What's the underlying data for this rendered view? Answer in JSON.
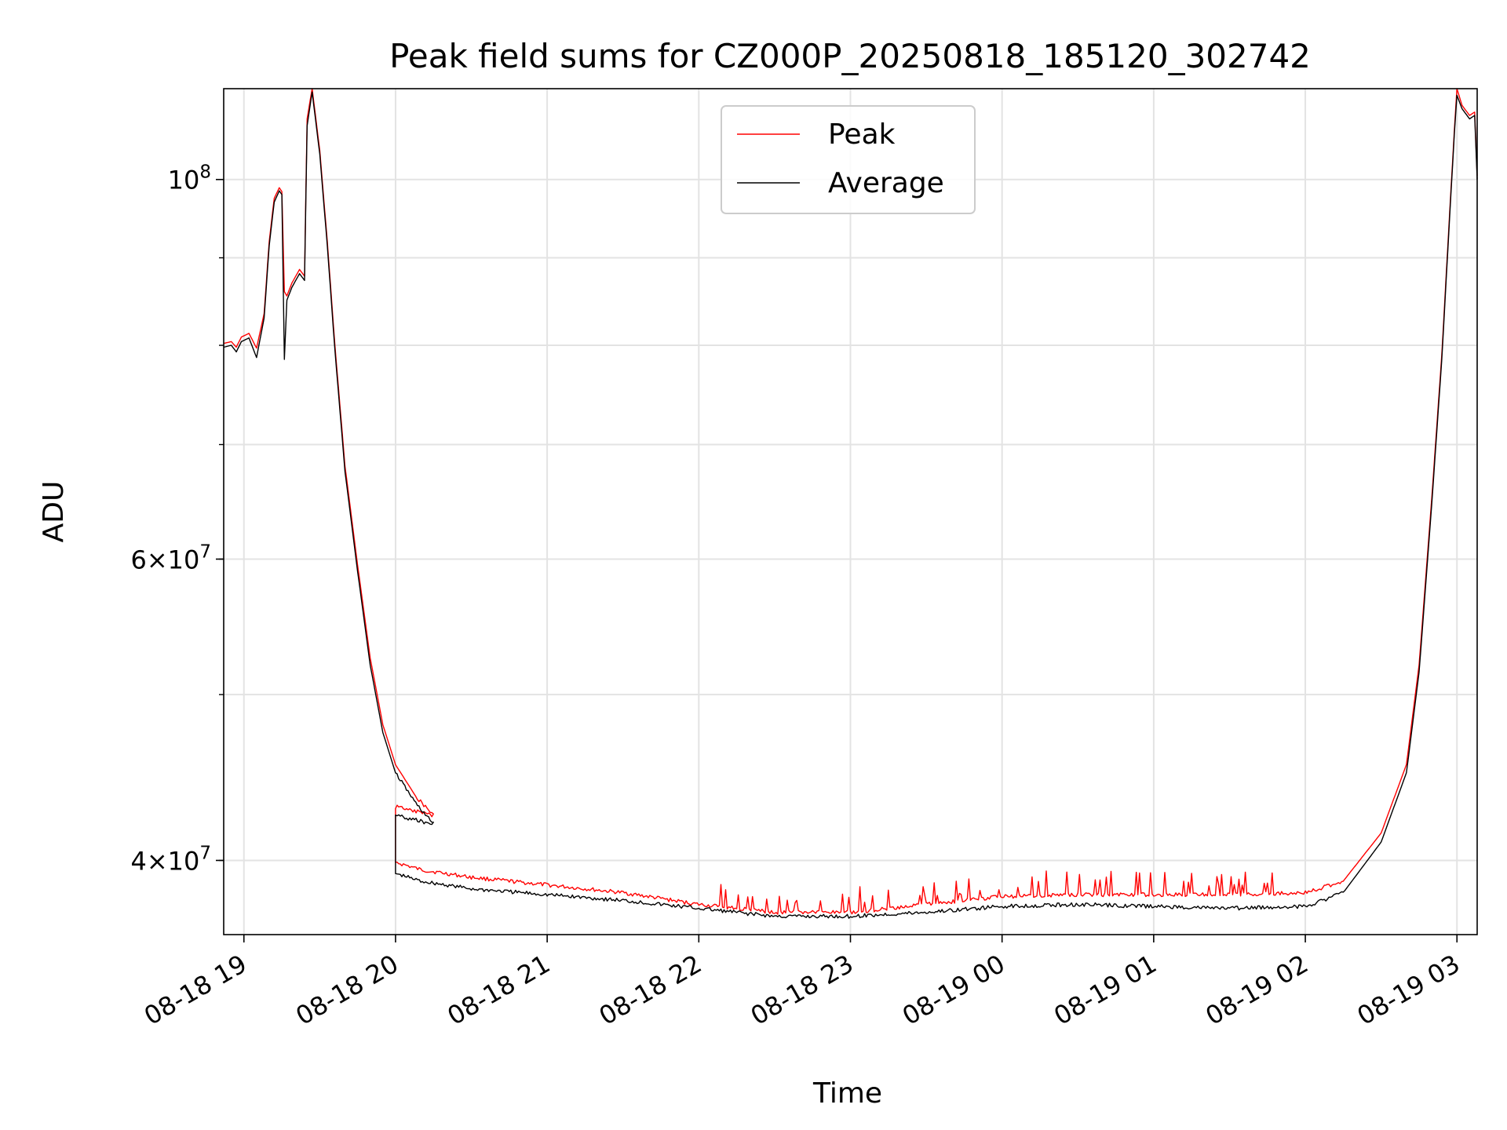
{
  "chart_data": {
    "type": "line",
    "title": "Peak field sums for CZ000P_20250818_185120_302742",
    "xlabel": "Time",
    "ylabel": "ADU",
    "y_scale": "log",
    "ylim": [
      36200000,
      113000000
    ],
    "xlim": [
      "2025-08-18 18:52",
      "2025-08-19 03:08"
    ],
    "x_ticks": [
      "08-18 19",
      "08-18 20",
      "08-18 21",
      "08-18 22",
      "08-18 23",
      "08-19 00",
      "08-19 01",
      "08-19 02",
      "08-19 03"
    ],
    "y_major_ticks": [
      {
        "value": 40000000,
        "mantissa": "4",
        "exponent": "7"
      },
      {
        "value": 60000000,
        "mantissa": "6",
        "exponent": "7"
      },
      {
        "value": 100000000,
        "mantissa": "",
        "exponent": "8"
      }
    ],
    "y_minor_ticks": [
      40000000,
      50000000,
      60000000,
      70000000,
      80000000,
      90000000,
      100000000
    ],
    "grid": true,
    "legend_position": "upper center",
    "series": [
      {
        "name": "Peak",
        "color": "#ff0000",
        "points": [
          [
            "2025-08-18 18:52",
            80200000
          ],
          [
            "2025-08-18 18:55",
            80400000
          ],
          [
            "2025-08-18 18:57",
            79800000
          ],
          [
            "2025-08-18 18:59",
            80900000
          ],
          [
            "2025-08-18 19:02",
            81300000
          ],
          [
            "2025-08-18 19:05",
            79700000
          ],
          [
            "2025-08-18 19:08",
            83500000
          ],
          [
            "2025-08-18 19:10",
            92000000
          ],
          [
            "2025-08-18 19:12",
            97500000
          ],
          [
            "2025-08-18 19:14",
            98900000
          ],
          [
            "2025-08-18 19:15",
            98400000
          ],
          [
            "2025-08-18 19:16",
            86000000
          ],
          [
            "2025-08-18 19:17",
            85500000
          ],
          [
            "2025-08-18 19:19",
            87000000
          ],
          [
            "2025-08-18 19:22",
            88600000
          ],
          [
            "2025-08-18 19:24",
            87800000
          ],
          [
            "2025-08-18 19:25",
            108500000
          ],
          [
            "2025-08-18 19:27",
            113000000
          ],
          [
            "2025-08-18 19:30",
            104000000
          ],
          [
            "2025-08-18 19:33",
            92000000
          ],
          [
            "2025-08-18 19:36",
            80000000
          ],
          [
            "2025-08-18 19:40",
            68000000
          ],
          [
            "2025-08-18 19:45",
            59500000
          ],
          [
            "2025-08-18 19:50",
            52500000
          ],
          [
            "2025-08-18 19:55",
            48000000
          ],
          [
            "2025-08-18 20:00",
            45500000
          ],
          [
            "2025-08-18 20:08",
            43600000
          ],
          [
            "2025-08-18 20:15",
            42500000
          ],
          [
            "2025-08-18 20:00",
            43000000
          ],
          [
            "2025-08-18 20:00",
            39900000
          ],
          [
            "2025-08-18 20:10",
            39500000
          ],
          [
            "2025-08-18 20:30",
            39100000
          ],
          [
            "2025-08-18 21:00",
            38700000
          ],
          [
            "2025-08-18 21:30",
            38300000
          ],
          [
            "2025-08-18 22:00",
            37700000
          ],
          [
            "2025-08-18 22:30",
            37300000
          ],
          [
            "2025-08-18 23:00",
            37300000
          ],
          [
            "2025-08-18 23:30",
            37700000
          ],
          [
            "2025-08-19 00:00",
            38100000
          ],
          [
            "2025-08-19 00:30",
            38200000
          ],
          [
            "2025-08-19 01:00",
            38200000
          ],
          [
            "2025-08-19 01:30",
            38200000
          ],
          [
            "2025-08-19 02:00",
            38300000
          ],
          [
            "2025-08-19 02:15",
            38900000
          ],
          [
            "2025-08-19 02:30",
            41500000
          ],
          [
            "2025-08-19 02:40",
            45500000
          ],
          [
            "2025-08-19 02:45",
            52000000
          ],
          [
            "2025-08-19 02:50",
            65000000
          ],
          [
            "2025-08-19 02:54",
            79000000
          ],
          [
            "2025-08-19 02:57",
            95000000
          ],
          [
            "2025-08-19 02:59",
            107000000
          ],
          [
            "2025-08-19 03:00",
            113000000
          ],
          [
            "2025-08-19 03:02",
            110500000
          ],
          [
            "2025-08-19 03:05",
            109000000
          ],
          [
            "2025-08-19 03:07",
            109500000
          ],
          [
            "2025-08-19 03:08",
            100500000
          ]
        ]
      },
      {
        "name": "Average",
        "color": "#000000",
        "points": [
          [
            "2025-08-18 18:52",
            79800000
          ],
          [
            "2025-08-18 18:55",
            80000000
          ],
          [
            "2025-08-18 18:57",
            79300000
          ],
          [
            "2025-08-18 18:59",
            80400000
          ],
          [
            "2025-08-18 19:02",
            80800000
          ],
          [
            "2025-08-18 19:05",
            78700000
          ],
          [
            "2025-08-18 19:08",
            83000000
          ],
          [
            "2025-08-18 19:10",
            91500000
          ],
          [
            "2025-08-18 19:12",
            97000000
          ],
          [
            "2025-08-18 19:14",
            98500000
          ],
          [
            "2025-08-18 19:15",
            98000000
          ],
          [
            "2025-08-18 19:16",
            78500000
          ],
          [
            "2025-08-18 19:17",
            85000000
          ],
          [
            "2025-08-18 19:19",
            86500000
          ],
          [
            "2025-08-18 19:22",
            88100000
          ],
          [
            "2025-08-18 19:24",
            87300000
          ],
          [
            "2025-08-18 19:25",
            107500000
          ],
          [
            "2025-08-18 19:27",
            112500000
          ],
          [
            "2025-08-18 19:30",
            103500000
          ],
          [
            "2025-08-18 19:33",
            91500000
          ],
          [
            "2025-08-18 19:36",
            79500000
          ],
          [
            "2025-08-18 19:40",
            67500000
          ],
          [
            "2025-08-18 19:45",
            59000000
          ],
          [
            "2025-08-18 19:50",
            52000000
          ],
          [
            "2025-08-18 19:55",
            47500000
          ],
          [
            "2025-08-18 20:00",
            45000000
          ],
          [
            "2025-08-18 20:08",
            43200000
          ],
          [
            "2025-08-18 20:15",
            42000000
          ],
          [
            "2025-08-18 20:00",
            42500000
          ],
          [
            "2025-08-18 20:00",
            39300000
          ],
          [
            "2025-08-18 20:10",
            38900000
          ],
          [
            "2025-08-18 20:30",
            38500000
          ],
          [
            "2025-08-18 21:00",
            38200000
          ],
          [
            "2025-08-18 21:30",
            37900000
          ],
          [
            "2025-08-18 22:00",
            37500000
          ],
          [
            "2025-08-18 22:30",
            37100000
          ],
          [
            "2025-08-18 23:00",
            37100000
          ],
          [
            "2025-08-18 23:30",
            37300000
          ],
          [
            "2025-08-19 00:00",
            37600000
          ],
          [
            "2025-08-19 00:30",
            37700000
          ],
          [
            "2025-08-19 01:00",
            37600000
          ],
          [
            "2025-08-19 01:30",
            37500000
          ],
          [
            "2025-08-19 02:00",
            37600000
          ],
          [
            "2025-08-19 02:15",
            38300000
          ],
          [
            "2025-08-19 02:30",
            41000000
          ],
          [
            "2025-08-19 02:40",
            45000000
          ],
          [
            "2025-08-19 02:45",
            51500000
          ],
          [
            "2025-08-19 02:50",
            64500000
          ],
          [
            "2025-08-19 02:54",
            78500000
          ],
          [
            "2025-08-19 02:57",
            94500000
          ],
          [
            "2025-08-19 02:59",
            106500000
          ],
          [
            "2025-08-19 03:00",
            112000000
          ],
          [
            "2025-08-19 03:02",
            110000000
          ],
          [
            "2025-08-19 03:05",
            108500000
          ],
          [
            "2025-08-19 03:07",
            109000000
          ],
          [
            "2025-08-19 03:08",
            100000000
          ]
        ]
      }
    ]
  }
}
